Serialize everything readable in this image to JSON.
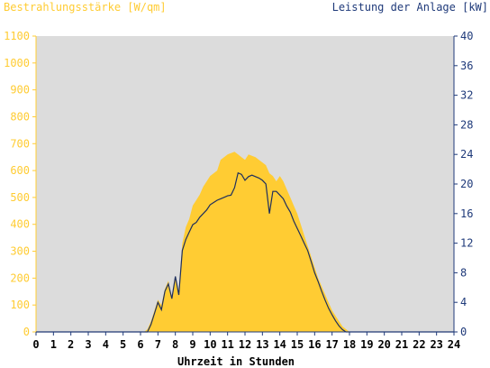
{
  "chart_data": {
    "type": "area",
    "left_axis_title": "Bestrahlungsstärke [W/qm]",
    "right_axis_title": "Leistung der Anlage [kW]",
    "x_axis_title": "Uhrzeit in Stunden",
    "xlim": [
      0,
      24
    ],
    "ylim_left": [
      0,
      1100
    ],
    "ylim_right": [
      0,
      40
    ],
    "x_ticks": [
      "0",
      "1",
      "2",
      "3",
      "4",
      "5",
      "6",
      "7",
      "8",
      "9",
      "10",
      "11",
      "12",
      "13",
      "14",
      "15",
      "16",
      "17",
      "18",
      "19",
      "20",
      "21",
      "22",
      "23",
      "24"
    ],
    "y_left_ticks": [
      "0",
      "100",
      "200",
      "300",
      "400",
      "500",
      "600",
      "700",
      "800",
      "900",
      "1000",
      "1100"
    ],
    "y_right_ticks": [
      "0",
      "4",
      "8",
      "12",
      "16",
      "20",
      "24",
      "28",
      "32",
      "36",
      "40"
    ],
    "grid": false,
    "plot_background": "#dcdcdc",
    "colors": {
      "irradiance_fill": "#ffcc33",
      "power_line": "#1f2f5c",
      "left_axis_text": "#ffcc33",
      "right_axis_text": "#1f3a7a",
      "x_axis_text": "#000000"
    },
    "series": [
      {
        "name": "Bestrahlungsstärke [W/qm]",
        "axis": "left",
        "x": [
          0,
          6.2,
          6.4,
          6.6,
          6.8,
          7.0,
          7.2,
          7.4,
          7.6,
          7.8,
          8.0,
          8.2,
          8.4,
          8.6,
          8.8,
          9.0,
          9.2,
          9.4,
          9.6,
          9.8,
          10.0,
          10.2,
          10.4,
          10.6,
          10.8,
          11.0,
          11.2,
          11.4,
          11.6,
          11.8,
          12.0,
          12.2,
          12.4,
          12.6,
          12.8,
          13.0,
          13.2,
          13.4,
          13.6,
          13.8,
          14.0,
          14.2,
          14.4,
          14.6,
          14.8,
          15.0,
          15.2,
          15.4,
          15.6,
          15.8,
          16.0,
          16.2,
          16.4,
          16.6,
          16.8,
          17.0,
          17.2,
          17.4,
          17.6,
          17.8,
          18.0,
          18.2,
          18.4,
          18.6,
          18.8,
          24
        ],
        "values": [
          0,
          0,
          10,
          40,
          80,
          120,
          100,
          160,
          190,
          130,
          200,
          150,
          330,
          390,
          420,
          470,
          490,
          510,
          540,
          560,
          580,
          590,
          600,
          640,
          650,
          660,
          665,
          670,
          660,
          650,
          640,
          660,
          655,
          650,
          640,
          630,
          620,
          590,
          580,
          560,
          580,
          560,
          530,
          500,
          470,
          440,
          400,
          360,
          320,
          280,
          240,
          200,
          170,
          140,
          110,
          80,
          60,
          40,
          20,
          10,
          0,
          0,
          0,
          0,
          0,
          0
        ]
      },
      {
        "name": "Leistung der Anlage [kW]",
        "axis": "right",
        "x": [
          0,
          6.4,
          6.6,
          6.8,
          7.0,
          7.2,
          7.4,
          7.6,
          7.8,
          8.0,
          8.2,
          8.4,
          8.6,
          8.8,
          9.0,
          9.2,
          9.4,
          9.6,
          9.8,
          10.0,
          10.2,
          10.4,
          10.6,
          10.8,
          11.0,
          11.2,
          11.4,
          11.6,
          11.8,
          12.0,
          12.2,
          12.4,
          12.6,
          12.8,
          13.0,
          13.2,
          13.4,
          13.6,
          13.8,
          14.0,
          14.2,
          14.4,
          14.6,
          14.8,
          15.0,
          15.2,
          15.4,
          15.6,
          15.8,
          16.0,
          16.2,
          16.4,
          16.6,
          16.8,
          17.0,
          17.2,
          17.4,
          17.6,
          17.8,
          18.0,
          18.2,
          18.4,
          18.6,
          18.8,
          24
        ],
        "values": [
          0,
          0,
          1.0,
          2.5,
          4.0,
          3.0,
          5.5,
          6.5,
          4.5,
          7.5,
          5.0,
          11.0,
          12.5,
          13.5,
          14.5,
          14.8,
          15.5,
          16.0,
          16.5,
          17.2,
          17.5,
          17.8,
          18.0,
          18.2,
          18.4,
          18.5,
          19.5,
          21.5,
          21.3,
          20.5,
          21.0,
          21.2,
          21.0,
          20.8,
          20.5,
          20.0,
          16.0,
          19.0,
          19.0,
          18.5,
          18.0,
          17.0,
          16.2,
          15.0,
          14.0,
          13.0,
          12.0,
          11.0,
          9.5,
          8.0,
          6.8,
          5.5,
          4.3,
          3.2,
          2.3,
          1.5,
          0.8,
          0.3,
          0,
          0,
          0,
          0,
          0,
          0,
          0
        ]
      }
    ]
  }
}
